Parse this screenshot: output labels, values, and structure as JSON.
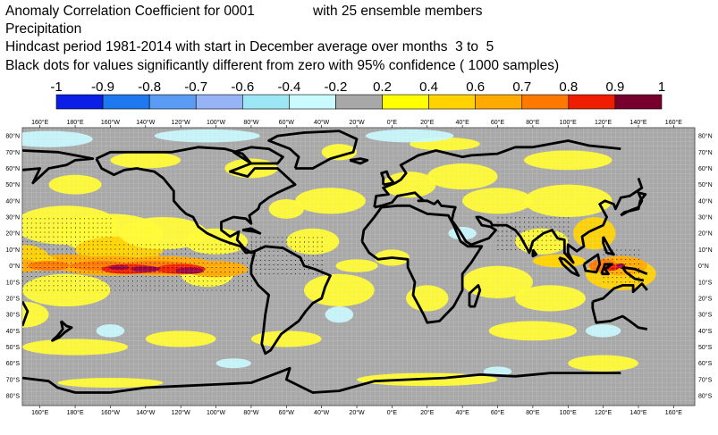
{
  "title": {
    "line1": "Anomaly Correlation Coefficient for 0001",
    "line1_right": "with 25 ensemble members",
    "line2": "Precipitation",
    "line3": "Hindcast period 1981-2014 with start in December average over months  3 to  5",
    "line4": "Black dots for values significantly different from zero with 95% confidence ( 1000 samples)"
  },
  "legend": {
    "labels": [
      "-1",
      "-0.9",
      "-0.8",
      "-0.7",
      "-0.6",
      "-0.4",
      "-0.2",
      "0.2",
      "0.4",
      "0.6",
      "0.7",
      "0.8",
      "0.9",
      "1"
    ],
    "colors": [
      "#0a1ee6",
      "#1e78f0",
      "#5a9cf5",
      "#96b4f5",
      "#9ce6f5",
      "#c8faff",
      "#a8a8a8",
      "#ffff00",
      "#ffd200",
      "#ffaa00",
      "#ff7800",
      "#f01e00",
      "#78002d"
    ]
  },
  "axes": {
    "top_lon_labels": [
      "160°E",
      "180°E",
      "160°W",
      "140°W",
      "120°W",
      "100°W",
      "80°W",
      "60°W",
      "40°W",
      "20°W",
      "0°E",
      "20°E",
      "40°E",
      "60°E",
      "80°E",
      "100°E",
      "120°E",
      "140°E",
      "160°E"
    ],
    "bottom_lon_labels": [
      "160°E",
      "180°E",
      "160°W",
      "140°W",
      "120°W",
      "100°W",
      "80°W",
      "60°W",
      "40°W",
      "20°W",
      "0°E",
      "20°E",
      "40°E",
      "60°E",
      "80°E",
      "100°E",
      "120°E",
      "140°E",
      "160°E"
    ],
    "left_lat_labels": [
      "80°N",
      "70°N",
      "60°N",
      "50°N",
      "40°N",
      "30°N",
      "20°N",
      "10°N",
      "0°N",
      "10°S",
      "20°S",
      "30°S",
      "40°S",
      "50°S",
      "60°S",
      "70°S",
      "80°S"
    ],
    "right_lat_labels": [
      "80°N",
      "70°N",
      "60°N",
      "50°N",
      "40°N",
      "30°N",
      "20°N",
      "10°N",
      "0°N",
      "10°S",
      "20°S",
      "30°S",
      "40°S",
      "50°S",
      "60°S",
      "70°S",
      "80°S"
    ]
  },
  "map": {
    "background_color": "#a8a8a8",
    "coast_color": "#000000"
  }
}
